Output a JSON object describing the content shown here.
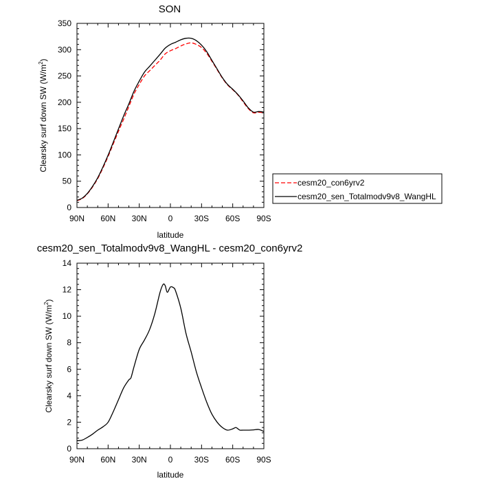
{
  "chart_data": [
    {
      "type": "line",
      "title": "SON",
      "xlabel": "latitude",
      "ylabel": "Clearsky surf down SW (W/m",
      "ylabel_sup": "2",
      "ylabel_tail": ")",
      "xlim": [
        90,
        -90
      ],
      "ylim": [
        0,
        350
      ],
      "x_ticks": [
        {
          "value": 90,
          "label": "90N"
        },
        {
          "value": 60,
          "label": "60N"
        },
        {
          "value": 30,
          "label": "30N"
        },
        {
          "value": 0,
          "label": "0"
        },
        {
          "value": -30,
          "label": "30S"
        },
        {
          "value": -60,
          "label": "60S"
        },
        {
          "value": -90,
          "label": "90S"
        }
      ],
      "y_ticks": [
        0,
        50,
        100,
        150,
        200,
        250,
        300,
        350
      ],
      "legend_position": "right",
      "series": [
        {
          "name": "cesm20_con6yrv2",
          "color": "#ff0000",
          "dash": "dashed",
          "x": [
            90,
            85,
            80,
            75,
            70,
            65,
            60,
            55,
            50,
            45,
            40,
            35,
            30,
            25,
            20,
            15,
            10,
            5,
            0,
            -5,
            -10,
            -15,
            -20,
            -25,
            -30,
            -35,
            -40,
            -45,
            -50,
            -55,
            -60,
            -65,
            -70,
            -75,
            -80,
            -85,
            -90
          ],
          "y": [
            13,
            17,
            26,
            39,
            55,
            75,
            97,
            121,
            145,
            168,
            192,
            216,
            234,
            250,
            260,
            270,
            280,
            292,
            298,
            302,
            307,
            311,
            313,
            310,
            304,
            293,
            278,
            262,
            246,
            233,
            224,
            214,
            201,
            188,
            180,
            181,
            180
          ]
        },
        {
          "name": "cesm20_sen_Totalmodv9v8_WangHL",
          "color": "#000000",
          "dash": "solid",
          "x": [
            90,
            85,
            80,
            75,
            70,
            65,
            60,
            55,
            50,
            45,
            40,
            35,
            30,
            25,
            20,
            15,
            10,
            5,
            0,
            -5,
            -10,
            -15,
            -20,
            -25,
            -30,
            -35,
            -40,
            -45,
            -50,
            -55,
            -60,
            -65,
            -70,
            -75,
            -80,
            -85,
            -90
          ],
          "y": [
            13.6,
            17.8,
            26.9,
            40.2,
            56.6,
            77.0,
            99.5,
            124.3,
            149.5,
            174.4,
            197.1,
            221.4,
            240.3,
            257.3,
            268.5,
            279.8,
            291.1,
            303.0,
            310.0,
            314.1,
            318.8,
            321.7,
            321.6,
            317.1,
            308.6,
            296.2,
            279.6,
            263.2,
            247.0,
            234.0,
            224.8,
            214.8,
            202.6,
            189.4,
            181.3,
            182.4,
            181.4
          ]
        }
      ]
    },
    {
      "type": "line",
      "title": "cesm20_sen_Totalmodv9v8_WangHL - cesm20_con6yrv2",
      "xlabel": "latitude",
      "ylabel": "Clearsky surf down SW (W/m",
      "ylabel_sup": "2",
      "ylabel_tail": ")",
      "xlim": [
        90,
        -90
      ],
      "ylim": [
        0,
        14
      ],
      "x_ticks": [
        {
          "value": 90,
          "label": "90N"
        },
        {
          "value": 60,
          "label": "60N"
        },
        {
          "value": 30,
          "label": "30N"
        },
        {
          "value": 0,
          "label": "0"
        },
        {
          "value": -30,
          "label": "30S"
        },
        {
          "value": -60,
          "label": "60S"
        },
        {
          "value": -90,
          "label": "90S"
        }
      ],
      "y_ticks": [
        0,
        2,
        4,
        6,
        8,
        10,
        12,
        14
      ],
      "series": [
        {
          "name": "",
          "color": "#000000",
          "dash": "solid",
          "x": [
            90,
            85,
            80,
            75,
            70,
            65,
            60,
            55,
            50,
            45,
            40,
            38,
            35,
            30,
            25,
            20,
            15,
            10,
            7,
            5,
            3,
            0,
            -3,
            -5,
            -10,
            -15,
            -20,
            -25,
            -30,
            -35,
            -40,
            -45,
            -50,
            -55,
            -60,
            -63,
            -65,
            -67,
            -70,
            -75,
            -80,
            -85,
            -90
          ],
          "y": [
            0.6,
            0.65,
            0.85,
            1.1,
            1.4,
            1.65,
            2.0,
            2.8,
            3.7,
            4.6,
            5.2,
            5.35,
            6.2,
            7.5,
            8.2,
            9.0,
            10.2,
            11.8,
            12.4,
            12.3,
            11.8,
            12.2,
            12.15,
            11.9,
            10.6,
            8.7,
            7.3,
            5.8,
            4.6,
            3.5,
            2.6,
            2.0,
            1.6,
            1.4,
            1.5,
            1.6,
            1.5,
            1.4,
            1.4,
            1.4,
            1.42,
            1.45,
            1.3
          ]
        }
      ]
    }
  ]
}
